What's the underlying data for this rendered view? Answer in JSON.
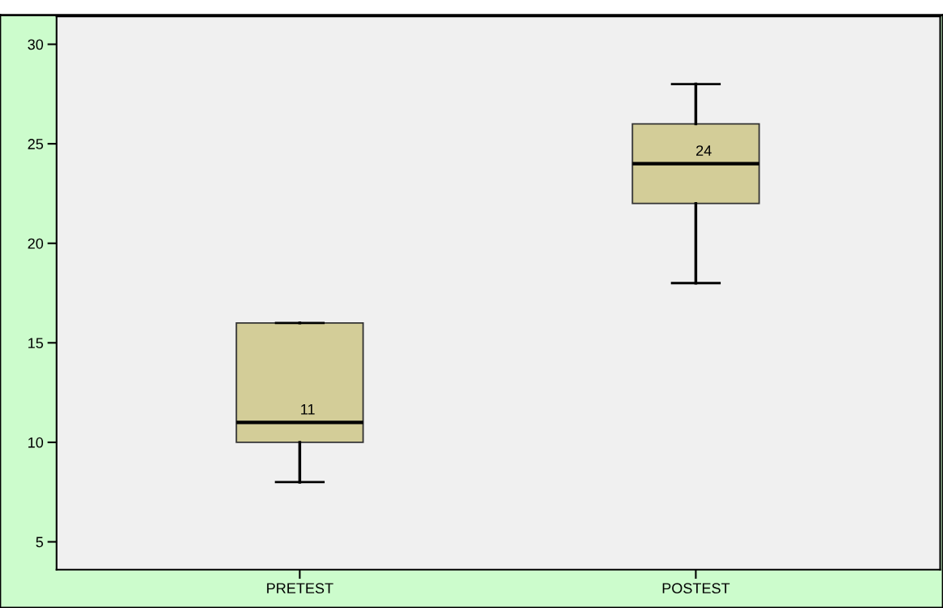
{
  "chart_data": {
    "type": "box",
    "categories": [
      "PRETEST",
      "POSTEST"
    ],
    "boxes": [
      {
        "low": 8,
        "q1": 10,
        "median": 11,
        "q3": 16,
        "high": 16
      },
      {
        "low": 18,
        "q1": 22,
        "median": 24,
        "q3": 26,
        "high": 28
      }
    ],
    "color": "#d3cd98",
    "value_labels": [
      "11",
      "24"
    ],
    "ylim": [
      3.6,
      31.4
    ],
    "yticks": [
      5,
      10,
      15,
      20,
      25,
      30
    ],
    "grid": false,
    "legend": false
  }
}
